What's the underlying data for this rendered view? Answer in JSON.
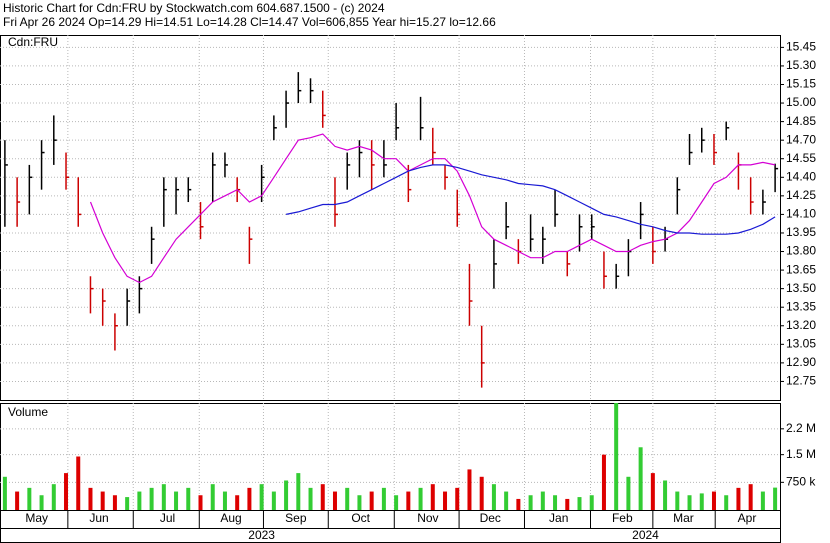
{
  "chart_data": {
    "type": "ohlc",
    "title": "Historic Chart for Cdn:FRU by Stockwatch.com 604.687.1500 - (c) 2024",
    "subtitle": "Fri Apr 26 2024  Op=14.29  Hi=14.51  Lo=14.28  Cl=14.47  Vol=606,855  Year hi=15.27  lo=12.66",
    "symbol_label": "Cdn:FRU",
    "volume_label": "Volume",
    "up_color": "#000000",
    "down_color": "#cc0000",
    "high": [
      14.7,
      14.4,
      14.5,
      14.7,
      14.9,
      14.6,
      14.4,
      13.6,
      13.5,
      13.3,
      13.5,
      13.6,
      14.0,
      14.4,
      14.4,
      14.4,
      14.2,
      14.6,
      14.6,
      14.4,
      14.0,
      14.5,
      14.9,
      15.1,
      15.25,
      15.2,
      15.1,
      14.4,
      14.6,
      14.7,
      14.7,
      14.7,
      15.0,
      14.5,
      15.05,
      14.8,
      14.5,
      14.3,
      13.7,
      13.2,
      13.9,
      14.2,
      13.9,
      14.1,
      14.0,
      14.3,
      13.8,
      14.1,
      14.1,
      13.8,
      13.7,
      13.9,
      14.2,
      14.0,
      14.0,
      14.4,
      14.75,
      14.8,
      14.75,
      14.85,
      14.6,
      14.4,
      14.3,
      14.51
    ],
    "low": [
      14.0,
      14.0,
      14.1,
      14.3,
      14.5,
      14.3,
      14.0,
      13.3,
      13.2,
      13.0,
      13.2,
      13.3,
      13.7,
      14.0,
      14.1,
      14.2,
      13.9,
      14.2,
      14.4,
      14.2,
      13.7,
      14.2,
      14.7,
      14.8,
      15.0,
      15.0,
      14.8,
      14.0,
      14.3,
      14.4,
      14.3,
      14.4,
      14.7,
      14.2,
      14.7,
      14.5,
      14.3,
      14.0,
      13.2,
      12.7,
      13.5,
      13.9,
      13.7,
      13.8,
      13.7,
      14.0,
      13.6,
      13.8,
      13.9,
      13.5,
      13.5,
      13.6,
      13.9,
      13.7,
      13.8,
      14.1,
      14.5,
      14.6,
      14.5,
      14.7,
      14.3,
      14.1,
      14.1,
      14.28
    ],
    "close": [
      14.5,
      14.2,
      14.4,
      14.6,
      14.7,
      14.4,
      14.1,
      13.5,
      13.4,
      13.2,
      13.4,
      13.5,
      13.9,
      14.3,
      14.3,
      14.3,
      14.0,
      14.5,
      14.5,
      14.3,
      13.9,
      14.4,
      14.8,
      15.0,
      15.1,
      15.1,
      14.9,
      14.1,
      14.5,
      14.6,
      14.5,
      14.5,
      14.8,
      14.3,
      14.8,
      14.6,
      14.4,
      14.1,
      13.4,
      12.9,
      13.7,
      14.0,
      13.8,
      13.9,
      13.9,
      14.1,
      13.7,
      14.0,
      14.0,
      13.6,
      13.6,
      13.8,
      14.1,
      13.8,
      13.9,
      14.3,
      14.6,
      14.7,
      14.6,
      14.8,
      14.5,
      14.2,
      14.2,
      14.47
    ],
    "ma_short": {
      "color": "#d400d4",
      "values": [
        null,
        null,
        null,
        null,
        null,
        null,
        null,
        14.2,
        13.95,
        13.75,
        13.6,
        13.55,
        13.6,
        13.75,
        13.9,
        14.0,
        14.1,
        14.2,
        14.25,
        14.3,
        14.2,
        14.25,
        14.4,
        14.55,
        14.7,
        14.72,
        14.75,
        14.65,
        14.62,
        14.65,
        14.62,
        14.55,
        14.55,
        14.45,
        14.5,
        14.55,
        14.55,
        14.45,
        14.25,
        14.0,
        13.9,
        13.85,
        13.8,
        13.75,
        13.75,
        13.8,
        13.8,
        13.85,
        13.9,
        13.85,
        13.8,
        13.8,
        13.85,
        13.88,
        13.9,
        13.95,
        14.05,
        14.2,
        14.35,
        14.4,
        14.5,
        14.5,
        14.52,
        14.5
      ]
    },
    "ma_long": {
      "color": "#1a1ad4",
      "values": [
        null,
        null,
        null,
        null,
        null,
        null,
        null,
        null,
        null,
        null,
        null,
        null,
        null,
        null,
        null,
        null,
        null,
        null,
        null,
        null,
        null,
        null,
        null,
        14.1,
        14.12,
        14.15,
        14.18,
        14.18,
        14.2,
        14.25,
        14.3,
        14.35,
        14.4,
        14.45,
        14.48,
        14.5,
        14.5,
        14.48,
        14.45,
        14.42,
        14.4,
        14.38,
        14.35,
        14.34,
        14.33,
        14.3,
        14.25,
        14.2,
        14.15,
        14.1,
        14.08,
        14.05,
        14.02,
        14.0,
        13.97,
        13.95,
        13.95,
        13.94,
        13.94,
        13.94,
        13.95,
        13.98,
        14.02,
        14.08
      ]
    },
    "volume": {
      "up_color": "#33cc33",
      "down_color": "#dd0000",
      "values": [
        900000,
        500000,
        600000,
        400000,
        700000,
        1000000,
        1450000,
        600000,
        500000,
        400000,
        350000,
        500000,
        600000,
        700000,
        500000,
        600000,
        400000,
        700000,
        500000,
        400000,
        600000,
        700000,
        500000,
        800000,
        1000000,
        600000,
        700000,
        500000,
        600000,
        400000,
        500000,
        600000,
        400000,
        500000,
        600000,
        700000,
        500000,
        600000,
        1100000,
        900000,
        700000,
        500000,
        300000,
        400000,
        500000,
        400000,
        300000,
        350000,
        400000,
        1500000,
        2900000,
        900000,
        1700000,
        1000000,
        800000,
        500000,
        400000,
        450000,
        500000,
        400000,
        600000,
        700000,
        500000,
        606855
      ]
    },
    "xlim": [
      -0.4,
      63.4
    ],
    "ylim": [
      12.6,
      15.55
    ],
    "yticks": [
      15.45,
      {
        "value": 15.3,
        "label": "15.30"
      },
      15.15,
      {
        "value": 15.0,
        "label": "15.00"
      },
      14.85,
      {
        "value": 14.7,
        "label": "14.70"
      },
      14.55,
      {
        "value": 14.4,
        "label": "14.40"
      },
      14.25,
      {
        "value": 14.1,
        "label": "14.10"
      },
      13.95,
      {
        "value": 13.8,
        "label": "13.80"
      },
      13.65,
      {
        "value": 13.5,
        "label": "13.50"
      },
      13.35,
      {
        "value": 13.2,
        "label": "13.20"
      },
      13.05,
      {
        "value": 12.9,
        "label": "12.90"
      },
      12.75
    ],
    "vlim": [
      0,
      2900000
    ],
    "vticks": [
      {
        "value": 2200000,
        "label": "2.2 M"
      },
      {
        "value": 1500000,
        "label": "1.5 M"
      },
      {
        "value": 750000,
        "label": "750 k"
      }
    ],
    "xticks": [
      {
        "value": 2.6,
        "label": "May"
      },
      {
        "value": 7.7,
        "label": "Jun"
      },
      {
        "value": 13.3,
        "label": "Jul"
      },
      {
        "value": 18.5,
        "label": "Aug"
      },
      {
        "value": 23.8,
        "label": "Sep"
      },
      {
        "value": 29.1,
        "label": "Oct"
      },
      {
        "value": 34.6,
        "label": "Nov"
      },
      {
        "value": 39.7,
        "label": "Dec"
      },
      {
        "value": 45.3,
        "label": "Jan"
      },
      {
        "value": 50.5,
        "label": "Feb"
      },
      {
        "value": 55.5,
        "label": "Mar"
      },
      {
        "value": 60.7,
        "label": "Apr"
      }
    ],
    "years": [
      {
        "value": 21,
        "label": "2023"
      },
      {
        "value": 52.4,
        "label": "2024"
      }
    ],
    "grid": true
  }
}
